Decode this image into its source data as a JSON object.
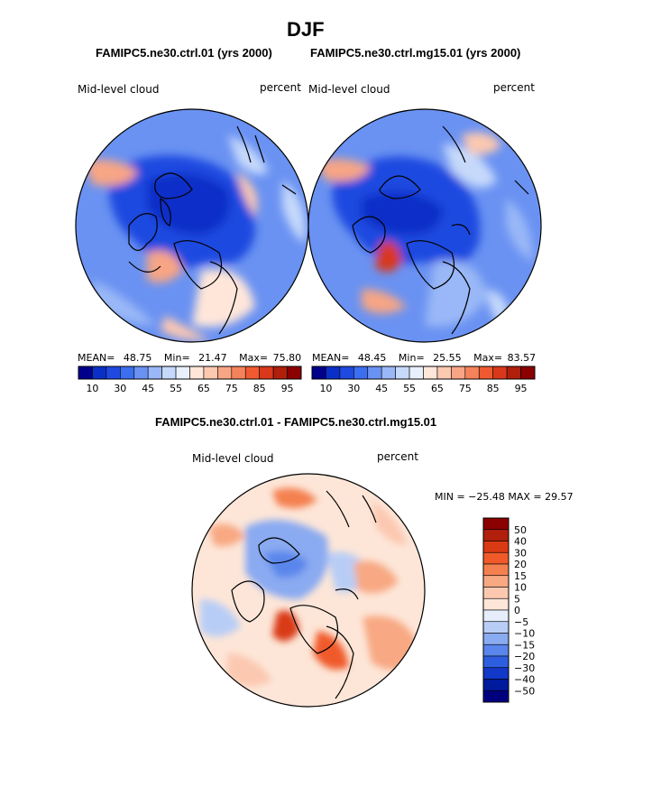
{
  "title": "DJF",
  "panels": [
    {
      "id": "left",
      "title": "FAMIPC5.ne30.ctrl.01 (yrs 2000)",
      "variable": "Mid-level cloud",
      "units": "percent",
      "stats": {
        "mean_label": "MEAN=",
        "mean": "48.75",
        "min_label": "Min=",
        "min": "21.47",
        "max_label": "Max=",
        "max": "75.80"
      }
    },
    {
      "id": "right",
      "title": "FAMIPC5.ne30.ctrl.mg15.01 (yrs 2000)",
      "variable": "Mid-level cloud",
      "units": "percent",
      "stats": {
        "mean_label": "MEAN=",
        "mean": "48.45",
        "min_label": "Min=",
        "min": "25.55",
        "max_label": "Max=",
        "max": "83.57"
      }
    }
  ],
  "horizontal_colorbar": {
    "colors": [
      "#00008b",
      "#0a2fc8",
      "#1f49e0",
      "#3c6ef0",
      "#6a92f2",
      "#9ab8f7",
      "#c6d9fb",
      "#e8f0fd",
      "#ffe6d9",
      "#fcc8b0",
      "#f7a584",
      "#f4825a",
      "#f05a30",
      "#d9381a",
      "#b01e0c",
      "#8b0000"
    ],
    "ticks": [
      "10",
      "30",
      "45",
      "55",
      "65",
      "75",
      "85",
      "95"
    ]
  },
  "difference_panel": {
    "title": "FAMIPC5.ne30.ctrl.01 - FAMIPC5.ne30.ctrl.mg15.01",
    "variable": "Mid-level cloud",
    "units": "percent",
    "minmax_text": "MIN = −25.48 MAX =   29.57"
  },
  "vertical_colorbar": {
    "colors": [
      "#8b0000",
      "#b0200c",
      "#d93a14",
      "#f05a2a",
      "#f48050",
      "#f8a882",
      "#fcc8b0",
      "#fde6d8",
      "#e6eefc",
      "#b8cdf6",
      "#8aaaf1",
      "#5a86ec",
      "#2e5ee0",
      "#1238c8",
      "#001a9e",
      "#00007e"
    ],
    "labels": [
      "50",
      "40",
      "30",
      "20",
      "15",
      "10",
      "5",
      "0",
      "−5",
      "−10",
      "−15",
      "−20",
      "−30",
      "−40",
      "−50"
    ]
  },
  "chart_data": [
    {
      "type": "heatmap",
      "title": "FAMIPC5.ne30.ctrl.01 (yrs 2000)",
      "variable": "Mid-level cloud",
      "units": "percent",
      "projection": "north polar stereographic",
      "mean": 48.75,
      "min": 21.47,
      "max": 75.8,
      "color_levels": [
        10,
        30,
        45,
        55,
        65,
        75,
        85,
        95
      ]
    },
    {
      "type": "heatmap",
      "title": "FAMIPC5.ne30.ctrl.mg15.01 (yrs 2000)",
      "variable": "Mid-level cloud",
      "units": "percent",
      "projection": "north polar stereographic",
      "mean": 48.45,
      "min": 25.55,
      "max": 83.57,
      "color_levels": [
        10,
        30,
        45,
        55,
        65,
        75,
        85,
        95
      ]
    },
    {
      "type": "heatmap",
      "title": "FAMIPC5.ne30.ctrl.01 - FAMIPC5.ne30.ctrl.mg15.01",
      "variable": "Mid-level cloud",
      "units": "percent",
      "projection": "north polar stereographic",
      "min": -25.48,
      "max": 29.57,
      "color_levels": [
        50,
        40,
        30,
        20,
        15,
        10,
        5,
        0,
        -5,
        -10,
        -15,
        -20,
        -30,
        -40,
        -50
      ]
    }
  ]
}
